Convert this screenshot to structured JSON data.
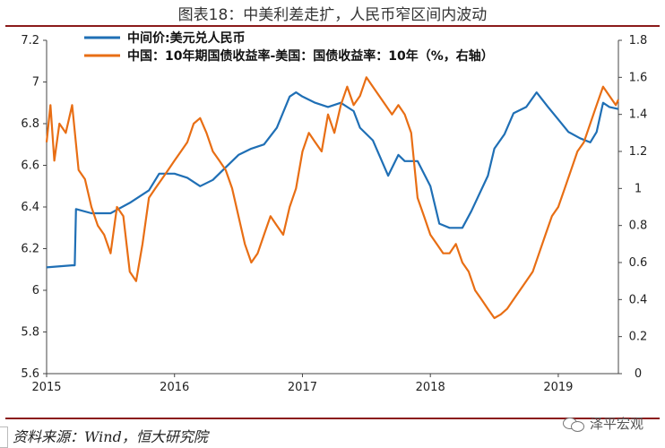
{
  "page": {
    "title": "图表18：中美利差走扩，人民币窄区间内波动",
    "source": "资料来源：Wind，恒大研究院",
    "watermark": "泽平宏观"
  },
  "chart_data": {
    "type": "line",
    "title": "图表18：中美利差走扩，人民币窄区间内波动",
    "x_range": [
      2015.0,
      2019.47
    ],
    "x_ticks": [
      2015,
      2016,
      2017,
      2018,
      2019
    ],
    "x_tick_labels": [
      "2015",
      "2016",
      "2017",
      "2018",
      "2019"
    ],
    "left_axis": {
      "range": [
        5.6,
        7.2
      ],
      "ticks": [
        5.6,
        5.8,
        6,
        6.2,
        6.4,
        6.6,
        6.8,
        7,
        7.2
      ],
      "tick_labels": [
        "5.6",
        "5.8",
        "6",
        "6.2",
        "6.4",
        "6.6",
        "6.8",
        "7",
        "7.2"
      ]
    },
    "right_axis": {
      "range": [
        0,
        1.8
      ],
      "ticks": [
        0,
        0.2,
        0.4,
        0.6,
        0.8,
        1,
        1.2,
        1.4,
        1.6,
        1.8
      ],
      "tick_labels": [
        "0",
        "0.2",
        "0.4",
        "0.6",
        "0.8",
        "1",
        "1.2",
        "1.4",
        "1.6",
        "1.8"
      ]
    },
    "legend_position": "top-left",
    "grid": false,
    "series": [
      {
        "name": "中间价:美元兑人民币",
        "axis": "left",
        "color": "#1f6fb5",
        "points": [
          [
            2015.0,
            6.11
          ],
          [
            2015.2,
            6.12
          ],
          [
            2015.22,
            6.12
          ],
          [
            2015.23,
            6.39
          ],
          [
            2015.35,
            6.37
          ],
          [
            2015.5,
            6.37
          ],
          [
            2015.65,
            6.42
          ],
          [
            2015.8,
            6.48
          ],
          [
            2015.88,
            6.56
          ],
          [
            2016.0,
            6.56
          ],
          [
            2016.1,
            6.54
          ],
          [
            2016.2,
            6.5
          ],
          [
            2016.3,
            6.53
          ],
          [
            2016.4,
            6.59
          ],
          [
            2016.5,
            6.65
          ],
          [
            2016.6,
            6.68
          ],
          [
            2016.7,
            6.7
          ],
          [
            2016.8,
            6.78
          ],
          [
            2016.9,
            6.93
          ],
          [
            2016.95,
            6.95
          ],
          [
            2017.0,
            6.93
          ],
          [
            2017.1,
            6.9
          ],
          [
            2017.2,
            6.88
          ],
          [
            2017.3,
            6.9
          ],
          [
            2017.4,
            6.86
          ],
          [
            2017.45,
            6.78
          ],
          [
            2017.55,
            6.72
          ],
          [
            2017.6,
            6.65
          ],
          [
            2017.67,
            6.55
          ],
          [
            2017.75,
            6.65
          ],
          [
            2017.8,
            6.62
          ],
          [
            2017.9,
            6.62
          ],
          [
            2018.0,
            6.5
          ],
          [
            2018.07,
            6.32
          ],
          [
            2018.15,
            6.3
          ],
          [
            2018.25,
            6.3
          ],
          [
            2018.32,
            6.38
          ],
          [
            2018.45,
            6.55
          ],
          [
            2018.5,
            6.68
          ],
          [
            2018.58,
            6.75
          ],
          [
            2018.65,
            6.85
          ],
          [
            2018.75,
            6.88
          ],
          [
            2018.83,
            6.95
          ],
          [
            2018.92,
            6.88
          ],
          [
            2019.0,
            6.82
          ],
          [
            2019.08,
            6.76
          ],
          [
            2019.17,
            6.73
          ],
          [
            2019.25,
            6.71
          ],
          [
            2019.3,
            6.76
          ],
          [
            2019.35,
            6.9
          ],
          [
            2019.4,
            6.88
          ],
          [
            2019.47,
            6.87
          ]
        ]
      },
      {
        "name": "中国：10年期国债收益率-美国：国债收益率：10年（%，右轴）",
        "axis": "right",
        "color": "#e86e14",
        "points": [
          [
            2015.0,
            1.25
          ],
          [
            2015.03,
            1.45
          ],
          [
            2015.06,
            1.15
          ],
          [
            2015.1,
            1.35
          ],
          [
            2015.15,
            1.3
          ],
          [
            2015.2,
            1.45
          ],
          [
            2015.25,
            1.1
          ],
          [
            2015.3,
            1.05
          ],
          [
            2015.35,
            0.9
          ],
          [
            2015.4,
            0.8
          ],
          [
            2015.45,
            0.75
          ],
          [
            2015.5,
            0.65
          ],
          [
            2015.55,
            0.9
          ],
          [
            2015.6,
            0.85
          ],
          [
            2015.65,
            0.55
          ],
          [
            2015.7,
            0.5
          ],
          [
            2015.75,
            0.7
          ],
          [
            2015.8,
            0.95
          ],
          [
            2015.85,
            1.0
          ],
          [
            2015.9,
            1.05
          ],
          [
            2015.95,
            1.1
          ],
          [
            2016.0,
            1.15
          ],
          [
            2016.05,
            1.2
          ],
          [
            2016.1,
            1.25
          ],
          [
            2016.15,
            1.35
          ],
          [
            2016.2,
            1.38
          ],
          [
            2016.25,
            1.3
          ],
          [
            2016.3,
            1.2
          ],
          [
            2016.35,
            1.15
          ],
          [
            2016.4,
            1.1
          ],
          [
            2016.45,
            1.0
          ],
          [
            2016.5,
            0.85
          ],
          [
            2016.55,
            0.7
          ],
          [
            2016.6,
            0.6
          ],
          [
            2016.65,
            0.65
          ],
          [
            2016.7,
            0.75
          ],
          [
            2016.75,
            0.85
          ],
          [
            2016.8,
            0.8
          ],
          [
            2016.85,
            0.75
          ],
          [
            2016.9,
            0.9
          ],
          [
            2016.95,
            1.0
          ],
          [
            2017.0,
            1.2
          ],
          [
            2017.05,
            1.3
          ],
          [
            2017.1,
            1.25
          ],
          [
            2017.15,
            1.2
          ],
          [
            2017.2,
            1.4
          ],
          [
            2017.25,
            1.3
          ],
          [
            2017.3,
            1.45
          ],
          [
            2017.35,
            1.55
          ],
          [
            2017.4,
            1.45
          ],
          [
            2017.45,
            1.5
          ],
          [
            2017.5,
            1.6
          ],
          [
            2017.55,
            1.55
          ],
          [
            2017.6,
            1.5
          ],
          [
            2017.65,
            1.45
          ],
          [
            2017.7,
            1.4
          ],
          [
            2017.75,
            1.45
          ],
          [
            2017.8,
            1.4
          ],
          [
            2017.85,
            1.3
          ],
          [
            2017.9,
            0.95
          ],
          [
            2017.95,
            0.85
          ],
          [
            2018.0,
            0.75
          ],
          [
            2018.05,
            0.7
          ],
          [
            2018.1,
            0.65
          ],
          [
            2018.15,
            0.65
          ],
          [
            2018.2,
            0.7
          ],
          [
            2018.25,
            0.6
          ],
          [
            2018.3,
            0.55
          ],
          [
            2018.35,
            0.45
          ],
          [
            2018.4,
            0.4
          ],
          [
            2018.45,
            0.35
          ],
          [
            2018.5,
            0.3
          ],
          [
            2018.55,
            0.32
          ],
          [
            2018.6,
            0.35
          ],
          [
            2018.65,
            0.4
          ],
          [
            2018.7,
            0.45
          ],
          [
            2018.75,
            0.5
          ],
          [
            2018.8,
            0.55
          ],
          [
            2018.85,
            0.65
          ],
          [
            2018.9,
            0.75
          ],
          [
            2018.95,
            0.85
          ],
          [
            2019.0,
            0.9
          ],
          [
            2019.05,
            1.0
          ],
          [
            2019.1,
            1.1
          ],
          [
            2019.15,
            1.2
          ],
          [
            2019.2,
            1.25
          ],
          [
            2019.25,
            1.35
          ],
          [
            2019.3,
            1.45
          ],
          [
            2019.35,
            1.55
          ],
          [
            2019.4,
            1.5
          ],
          [
            2019.45,
            1.45
          ],
          [
            2019.47,
            1.48
          ]
        ]
      }
    ]
  }
}
